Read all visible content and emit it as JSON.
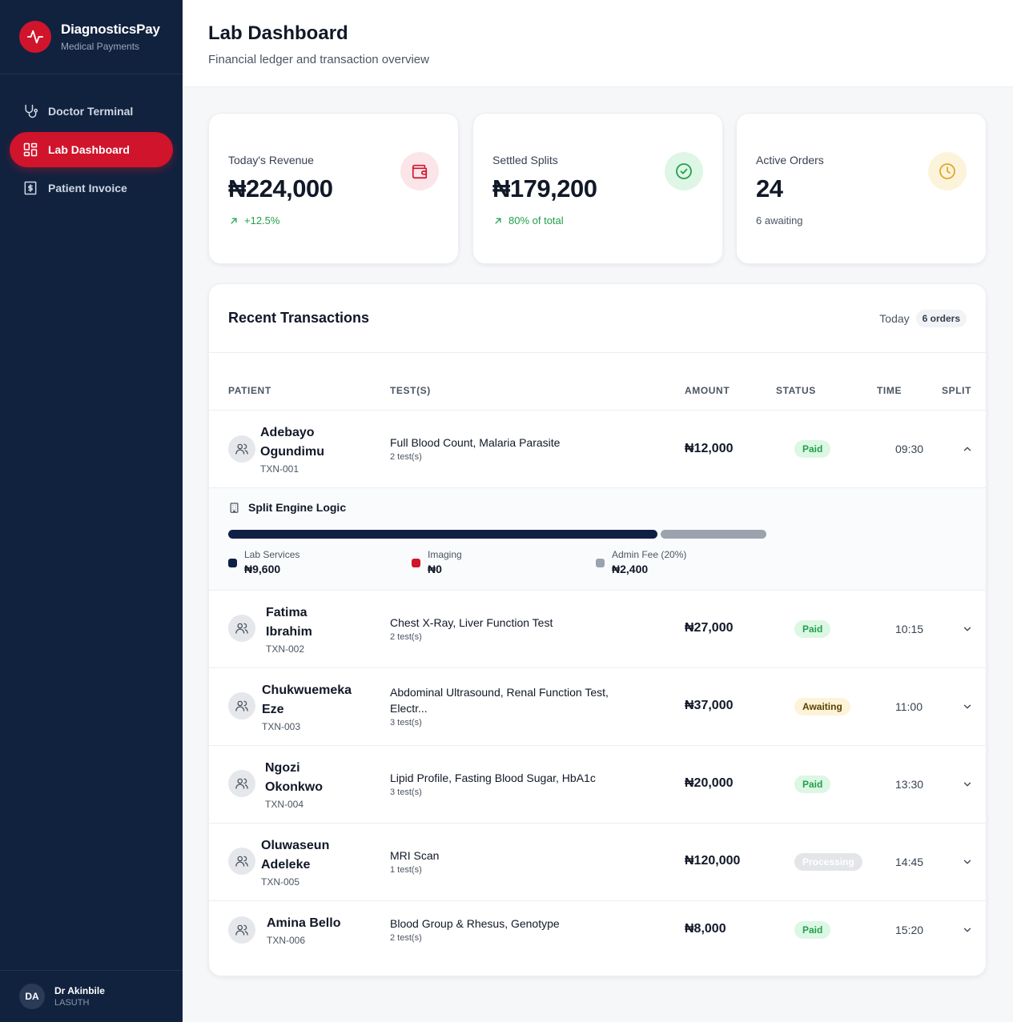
{
  "app": {
    "name": "DiagnosticsPay",
    "subtitle": "Medical Payments"
  },
  "nav": [
    {
      "label": "Doctor Terminal",
      "icon": "stethoscope-icon",
      "active": false
    },
    {
      "label": "Lab Dashboard",
      "icon": "dashboard-icon",
      "active": true
    },
    {
      "label": "Patient Invoice",
      "icon": "invoice-icon",
      "active": false
    }
  ],
  "user": {
    "initials": "DA",
    "name": "Dr Akinbile",
    "org": "LASUTH"
  },
  "header": {
    "title": "Lab Dashboard",
    "subtitle": "Financial ledger and transaction overview"
  },
  "kpis": [
    {
      "label": "Today's Revenue",
      "value": "₦224,000",
      "sub": "+12.5%",
      "icon": "wallet-icon",
      "color": "#d0142c"
    },
    {
      "label": "Settled Splits",
      "value": "₦179,200",
      "sub": "80% of total",
      "icon": "check-circle-icon",
      "color": "#22a04b"
    },
    {
      "label": "Active Orders",
      "value": "24",
      "sub": "6 awaiting",
      "icon": "clock-icon",
      "color": "#e0a82e"
    }
  ],
  "transactions": {
    "title": "Recent Transactions",
    "period": "Today",
    "count": "6 orders",
    "columns": {
      "patient": "PATIENT",
      "tests": "TEST(S)",
      "amount": "AMOUNT",
      "status": "STATUS",
      "time": "TIME",
      "split": "SPLIT"
    },
    "rows": [
      {
        "name1": "Adebayo",
        "name2": "Ogundimu",
        "id": "TXN-001",
        "tests": "Full Blood Count, Malaria Parasite",
        "count": "2 test(s)",
        "amount": "₦12,000",
        "status": "Paid",
        "time": "09:30",
        "expanded": true
      },
      {
        "name1": "Fatima",
        "name2": "Ibrahim",
        "id": "TXN-002",
        "tests": "Chest X-Ray, Liver Function Test",
        "count": "2 test(s)",
        "amount": "₦27,000",
        "status": "Paid",
        "time": "10:15",
        "expanded": false
      },
      {
        "name1": "Chukwuemeka",
        "name2": "Eze",
        "id": "TXN-003",
        "tests": "Abdominal Ultrasound, Renal Function Test, Electr...",
        "count": "3 test(s)",
        "amount": "₦37,000",
        "status": "Awaiting",
        "time": "11:00",
        "expanded": false
      },
      {
        "name1": "Ngozi",
        "name2": "Okonkwo",
        "id": "TXN-004",
        "tests": "Lipid Profile, Fasting Blood Sugar, HbA1c",
        "count": "3 test(s)",
        "amount": "₦20,000",
        "status": "Paid",
        "time": "13:30",
        "expanded": false
      },
      {
        "name1": "Oluwaseun",
        "name2": "Adeleke",
        "id": "TXN-005",
        "tests": "MRI Scan",
        "count": "1 test(s)",
        "amount": "₦120,000",
        "status": "Processing",
        "time": "14:45",
        "expanded": false
      },
      {
        "name1": "Amina Bello",
        "name2": "",
        "id": "TXN-006",
        "tests": "Blood Group & Rhesus, Genotype",
        "count": "2 test(s)",
        "amount": "₦8,000",
        "status": "Paid",
        "time": "15:20",
        "expanded": false
      }
    ]
  },
  "split": {
    "title": "Split Engine Logic",
    "segments": [
      {
        "label": "Lab Services",
        "value": "₦9,600",
        "fraction": 0.8,
        "color": "#0f2044"
      },
      {
        "label": "Imaging",
        "value": "₦0",
        "fraction": 0,
        "color": "#d0142c"
      },
      {
        "label": "Admin Fee (20%)",
        "value": "₦2,400",
        "fraction": 0.2,
        "color": "#9ca3af"
      }
    ]
  }
}
